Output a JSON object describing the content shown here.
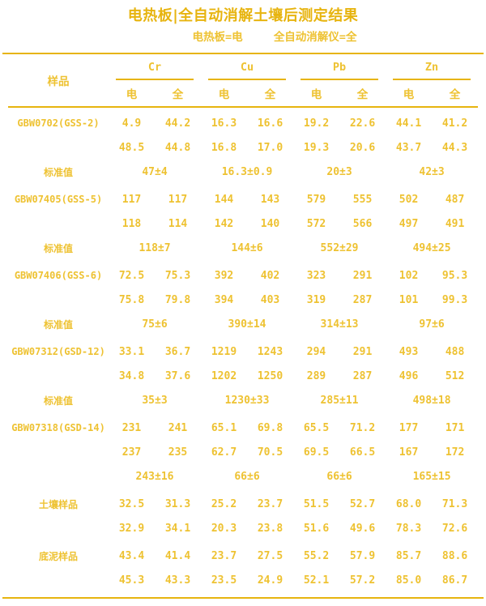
{
  "header": {
    "title": "电热板|全自动消解土壤后测定结果",
    "legend_left": "电热板=电",
    "legend_right": "全自动消解仪=全"
  },
  "colors": {
    "gold_dark": "#E7B40F",
    "gold_light": "#EEC232",
    "background": "#FFFFFF"
  },
  "chart_data": {
    "type": "table",
    "title": "电热板|全自动消解土壤后测定结果",
    "legend": [
      "电热板=电",
      "全自动消解仪=全"
    ],
    "sample_header": "样品",
    "elements": [
      "Cr",
      "Cu",
      "Pb",
      "Zn"
    ],
    "method_headers": [
      "电",
      "全",
      "电",
      "全",
      "电",
      "全",
      "电",
      "全"
    ],
    "columns": [
      "样品",
      "Cr-电",
      "Cr-全",
      "Cu-电",
      "Cu-全",
      "Pb-电",
      "Pb-全",
      "Zn-电",
      "Zn-全"
    ],
    "blocks": [
      {
        "name": "GBW0702(GSS-2)",
        "rows": [
          [
            "4.9",
            "44.2",
            "16.3",
            "16.6",
            "19.2",
            "22.6",
            "44.1",
            "41.2"
          ],
          [
            "48.5",
            "44.8",
            "16.8",
            "17.0",
            "19.3",
            "20.6",
            "43.7",
            "44.3"
          ]
        ],
        "standard_label": "标准值",
        "standard": [
          "47±4",
          "16.3±0.9",
          "20±3",
          "42±3"
        ]
      },
      {
        "name": "GBW07405(GSS-5)",
        "rows": [
          [
            "117",
            "117",
            "144",
            "143",
            "579",
            "555",
            "502",
            "487"
          ],
          [
            "118",
            "114",
            "142",
            "140",
            "572",
            "566",
            "497",
            "491"
          ]
        ],
        "standard_label": "标准值",
        "standard": [
          "118±7",
          "144±6",
          "552±29",
          "494±25"
        ]
      },
      {
        "name": "GBW07406(GSS-6)",
        "rows": [
          [
            "72.5",
            "75.3",
            "392",
            "402",
            "323",
            "291",
            "102",
            "95.3"
          ],
          [
            "75.8",
            "79.8",
            "394",
            "403",
            "319",
            "287",
            "101",
            "99.3"
          ]
        ],
        "standard_label": "标准值",
        "standard": [
          "75±6",
          "390±14",
          "314±13",
          "97±6"
        ]
      },
      {
        "name": "GBW07312(GSD-12)",
        "rows": [
          [
            "33.1",
            "36.7",
            "1219",
            "1243",
            "294",
            "291",
            "493",
            "488"
          ],
          [
            "34.8",
            "37.6",
            "1202",
            "1250",
            "289",
            "287",
            "496",
            "512"
          ]
        ],
        "standard_label": "标准值",
        "standard": [
          "35±3",
          "1230±33",
          "285±11",
          "498±18"
        ]
      },
      {
        "name": "GBW07318(GSD-14)",
        "rows": [
          [
            "231",
            "241",
            "65.1",
            "69.8",
            "65.5",
            "71.2",
            "177",
            "171"
          ],
          [
            "237",
            "235",
            "62.7",
            "70.5",
            "69.5",
            "66.5",
            "167",
            "172"
          ]
        ],
        "standard_label": "",
        "standard": [
          "243±16",
          "66±6",
          "66±6",
          "165±15"
        ]
      },
      {
        "name": "土壤样品",
        "rows": [
          [
            "32.5",
            "31.3",
            "25.2",
            "23.7",
            "51.5",
            "52.7",
            "68.0",
            "71.3"
          ],
          [
            "32.9",
            "34.1",
            "20.3",
            "23.8",
            "51.6",
            "49.6",
            "78.3",
            "72.6"
          ]
        ],
        "standard_label": null,
        "standard": null
      },
      {
        "name": "底泥样品",
        "rows": [
          [
            "43.4",
            "41.4",
            "23.7",
            "27.5",
            "55.2",
            "57.9",
            "85.7",
            "88.6"
          ],
          [
            "45.3",
            "43.3",
            "23.5",
            "24.9",
            "52.1",
            "57.2",
            "85.0",
            "86.7"
          ]
        ],
        "standard_label": null,
        "standard": null
      }
    ]
  }
}
